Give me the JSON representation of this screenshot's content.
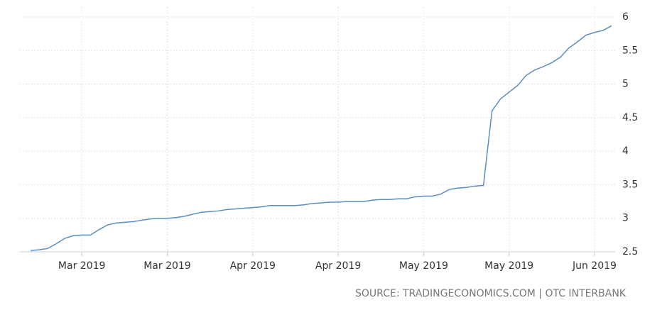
{
  "chart_data": {
    "type": "line",
    "categories": [
      null,
      null,
      null,
      null,
      null,
      null,
      "Mar 2019",
      null,
      null,
      null,
      null,
      null,
      null,
      null,
      null,
      null,
      "Mar 2019",
      null,
      null,
      null,
      null,
      null,
      null,
      null,
      null,
      null,
      "Apr 2019",
      null,
      null,
      null,
      null,
      null,
      null,
      null,
      null,
      null,
      "Apr 2019",
      null,
      null,
      null,
      null,
      null,
      null,
      null,
      null,
      null,
      "May 2019",
      null,
      null,
      null,
      null,
      null,
      null,
      null,
      null,
      null,
      "May 2019",
      null,
      null,
      null,
      null,
      null,
      null,
      null,
      null,
      null,
      "Jun 2019",
      null,
      null
    ],
    "values": [
      2.52,
      2.53,
      2.55,
      2.62,
      2.7,
      2.74,
      2.75,
      2.75,
      2.83,
      2.9,
      2.93,
      2.94,
      2.95,
      2.97,
      2.99,
      3.0,
      3.0,
      3.01,
      3.03,
      3.06,
      3.09,
      3.1,
      3.11,
      3.13,
      3.14,
      3.15,
      3.16,
      3.17,
      3.19,
      3.19,
      3.19,
      3.19,
      3.2,
      3.22,
      3.23,
      3.24,
      3.24,
      3.25,
      3.25,
      3.25,
      3.27,
      3.28,
      3.28,
      3.29,
      3.29,
      3.32,
      3.33,
      3.33,
      3.36,
      3.43,
      3.45,
      3.46,
      3.48,
      3.49,
      4.6,
      4.78,
      4.88,
      4.98,
      5.13,
      5.21,
      5.26,
      5.32,
      5.4,
      5.54,
      5.63,
      5.73,
      5.77,
      5.8,
      5.87
    ],
    "color": "#5b8ec2",
    "ylim": [
      2.5,
      6
    ],
    "yticks": [
      2.5,
      3,
      3.5,
      4,
      4.5,
      5,
      5.5,
      6
    ],
    "grid": true,
    "source": "SOURCE: TRADINGECONOMICS.COM | OTC INTERBANK"
  }
}
